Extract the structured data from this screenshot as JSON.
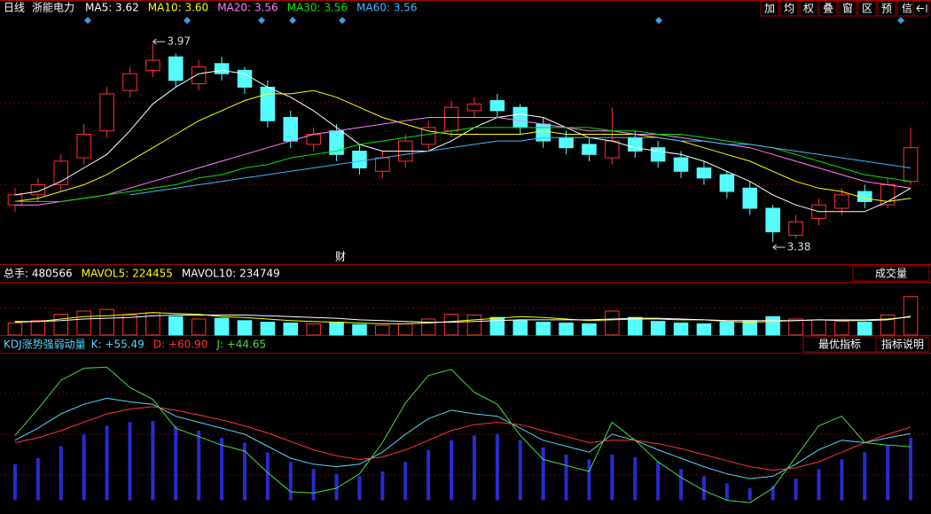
{
  "header": {
    "period": "日线",
    "stock": "浙能电力"
  },
  "toolbar": [
    "加",
    "均",
    "权",
    "叠",
    "窗",
    "区",
    "预",
    "信息"
  ],
  "panel_buttons": {
    "volume": "成交量",
    "best": "最优指标",
    "help": "指标说明"
  },
  "chart_data": [
    {
      "type": "candlestick",
      "ylim": [
        3.33,
        4.02
      ],
      "up_color": "#ff3232",
      "down_color": "#54fcfc",
      "annotations": [
        "财"
      ],
      "open": [
        3.49,
        3.52,
        3.55,
        3.63,
        3.71,
        3.83,
        3.89,
        3.93,
        3.85,
        3.91,
        3.89,
        3.84,
        3.75,
        3.67,
        3.71,
        3.65,
        3.59,
        3.62,
        3.67,
        3.71,
        3.77,
        3.8,
        3.78,
        3.73,
        3.69,
        3.67,
        3.63,
        3.69,
        3.66,
        3.63,
        3.6,
        3.58,
        3.54,
        3.48,
        3.4,
        3.45,
        3.48,
        3.53,
        3.49,
        3.56
      ],
      "high": [
        3.54,
        3.57,
        3.64,
        3.73,
        3.84,
        3.9,
        3.97,
        3.94,
        3.92,
        3.93,
        3.9,
        3.86,
        3.77,
        3.72,
        3.73,
        3.67,
        3.65,
        3.7,
        3.74,
        3.8,
        3.81,
        3.82,
        3.79,
        3.75,
        3.71,
        3.69,
        3.78,
        3.71,
        3.68,
        3.65,
        3.62,
        3.59,
        3.56,
        3.49,
        3.46,
        3.51,
        3.54,
        3.55,
        3.57,
        3.72
      ],
      "low": [
        3.47,
        3.5,
        3.53,
        3.61,
        3.69,
        3.81,
        3.87,
        3.84,
        3.83,
        3.86,
        3.82,
        3.72,
        3.66,
        3.65,
        3.62,
        3.58,
        3.57,
        3.6,
        3.65,
        3.69,
        3.75,
        3.75,
        3.7,
        3.66,
        3.64,
        3.62,
        3.61,
        3.63,
        3.6,
        3.57,
        3.55,
        3.51,
        3.46,
        3.38,
        3.39,
        3.43,
        3.46,
        3.48,
        3.48,
        3.55
      ],
      "close": [
        3.52,
        3.55,
        3.62,
        3.7,
        3.82,
        3.88,
        3.92,
        3.86,
        3.9,
        3.88,
        3.84,
        3.74,
        3.68,
        3.7,
        3.64,
        3.6,
        3.63,
        3.68,
        3.72,
        3.78,
        3.79,
        3.77,
        3.72,
        3.68,
        3.66,
        3.64,
        3.68,
        3.65,
        3.62,
        3.59,
        3.57,
        3.53,
        3.48,
        3.41,
        3.44,
        3.49,
        3.52,
        3.5,
        3.55,
        3.66
      ],
      "series": [
        {
          "name": "MA5: 3.62",
          "color": "#ffffff",
          "values": [
            3.52,
            3.53,
            3.56,
            3.6,
            3.64,
            3.71,
            3.79,
            3.84,
            3.88,
            3.89,
            3.88,
            3.84,
            3.81,
            3.77,
            3.72,
            3.67,
            3.65,
            3.65,
            3.65,
            3.68,
            3.72,
            3.75,
            3.76,
            3.75,
            3.72,
            3.69,
            3.68,
            3.66,
            3.65,
            3.64,
            3.62,
            3.59,
            3.56,
            3.52,
            3.49,
            3.47,
            3.47,
            3.47,
            3.5,
            3.54
          ]
        },
        {
          "name": "MA10: 3.60",
          "color": "#ffff00",
          "values": [
            3.5,
            3.51,
            3.53,
            3.55,
            3.58,
            3.62,
            3.66,
            3.7,
            3.74,
            3.77,
            3.8,
            3.82,
            3.82,
            3.83,
            3.81,
            3.78,
            3.75,
            3.73,
            3.71,
            3.7,
            3.7,
            3.7,
            3.7,
            3.71,
            3.7,
            3.7,
            3.7,
            3.7,
            3.69,
            3.68,
            3.66,
            3.64,
            3.62,
            3.59,
            3.56,
            3.54,
            3.53,
            3.51,
            3.5,
            3.51
          ]
        },
        {
          "name": "MA20: 3.56",
          "color": "#ff80ff",
          "values": [
            3.49,
            3.49,
            3.5,
            3.51,
            3.52,
            3.54,
            3.56,
            3.58,
            3.6,
            3.62,
            3.64,
            3.66,
            3.68,
            3.7,
            3.71,
            3.72,
            3.73,
            3.74,
            3.75,
            3.75,
            3.75,
            3.75,
            3.74,
            3.73,
            3.72,
            3.71,
            3.71,
            3.7,
            3.7,
            3.69,
            3.68,
            3.67,
            3.66,
            3.64,
            3.62,
            3.6,
            3.58,
            3.56,
            3.55,
            3.54
          ]
        },
        {
          "name": "MA30: 3.56",
          "color": "#00e600",
          "values": [
            3.5,
            3.5,
            3.5,
            3.51,
            3.52,
            3.53,
            3.54,
            3.55,
            3.57,
            3.58,
            3.6,
            3.61,
            3.63,
            3.64,
            3.65,
            3.67,
            3.68,
            3.69,
            3.7,
            3.71,
            3.72,
            3.72,
            3.72,
            3.72,
            3.72,
            3.72,
            3.71,
            3.71,
            3.7,
            3.7,
            3.69,
            3.68,
            3.67,
            3.66,
            3.64,
            3.62,
            3.6,
            3.58,
            3.57,
            3.56
          ]
        },
        {
          "name": "MA60: 3.56",
          "color": "#40b8ff",
          "values": [
            null,
            null,
            null,
            null,
            null,
            3.52,
            3.53,
            3.54,
            3.55,
            3.56,
            3.57,
            3.58,
            3.59,
            3.6,
            3.61,
            3.62,
            3.63,
            3.64,
            3.65,
            3.66,
            3.67,
            3.68,
            3.68,
            3.69,
            3.69,
            3.69,
            3.69,
            3.69,
            3.69,
            3.68,
            3.68,
            3.67,
            3.67,
            3.66,
            3.65,
            3.64,
            3.63,
            3.62,
            3.61,
            3.6
          ]
        }
      ]
    },
    {
      "type": "bar",
      "ylim": [
        0,
        600000
      ],
      "name": "总手: 480566",
      "name_color": "#ffffff",
      "values": [
        150000,
        180000,
        260000,
        300000,
        320000,
        250000,
        280000,
        230000,
        200000,
        210000,
        180000,
        160000,
        150000,
        140000,
        160000,
        130000,
        120000,
        140000,
        200000,
        260000,
        250000,
        220000,
        180000,
        160000,
        150000,
        140000,
        300000,
        220000,
        170000,
        150000,
        140000,
        160000,
        180000,
        230000,
        200000,
        190000,
        170000,
        160000,
        250000,
        480566
      ],
      "series": [
        {
          "name": "MAVOL5: 224455",
          "color": "#ffff00",
          "values": [
            160000,
            170000,
            200000,
            230000,
            240000,
            260000,
            280000,
            270000,
            260000,
            230000,
            220000,
            200000,
            180000,
            170000,
            160000,
            150000,
            140000,
            140000,
            150000,
            170000,
            190000,
            210000,
            230000,
            220000,
            200000,
            180000,
            190000,
            200000,
            200000,
            190000,
            190000,
            170000,
            160000,
            170000,
            180000,
            190000,
            190000,
            190000,
            200000,
            224455
          ]
        },
        {
          "name": "MAVOL10: 234749",
          "color": "#ffffff",
          "values": [
            170000,
            170000,
            180000,
            200000,
            210000,
            220000,
            240000,
            250000,
            250000,
            250000,
            250000,
            240000,
            230000,
            220000,
            210000,
            190000,
            180000,
            170000,
            160000,
            160000,
            170000,
            180000,
            190000,
            190000,
            190000,
            190000,
            200000,
            210000,
            210000,
            200000,
            190000,
            180000,
            180000,
            180000,
            180000,
            190000,
            180000,
            180000,
            190000,
            234749
          ]
        }
      ]
    },
    {
      "type": "line",
      "title": "KDJ涨势强弱动量",
      "ylim": [
        -10,
        120
      ],
      "bar_color": "#2a2ad0",
      "bars": [
        30,
        35,
        45,
        55,
        62,
        65,
        66,
        62,
        58,
        52,
        48,
        40,
        32,
        26,
        22,
        20,
        24,
        32,
        42,
        50,
        54,
        55,
        50,
        44,
        38,
        34,
        38,
        36,
        32,
        26,
        20,
        14,
        10,
        12,
        18,
        26,
        34,
        40,
        46,
        52
      ],
      "series": [
        {
          "name": "K: +55.49",
          "color": "#54d8fc",
          "values": [
            50,
            60,
            72,
            80,
            85,
            82,
            80,
            70,
            65,
            60,
            55,
            45,
            35,
            30,
            28,
            30,
            40,
            55,
            68,
            75,
            72,
            70,
            60,
            50,
            45,
            40,
            55,
            50,
            42,
            35,
            28,
            22,
            18,
            20,
            30,
            42,
            50,
            48,
            52,
            55.49
          ]
        },
        {
          "name": "D: +60.90",
          "color": "#ff3232",
          "values": [
            48,
            52,
            58,
            65,
            72,
            76,
            78,
            75,
            71,
            67,
            62,
            56,
            49,
            42,
            37,
            34,
            36,
            42,
            50,
            58,
            63,
            65,
            63,
            58,
            53,
            48,
            50,
            50,
            47,
            43,
            38,
            33,
            28,
            25,
            27,
            32,
            40,
            48,
            55,
            60.9
          ]
        },
        {
          "name": "J: +44.65",
          "color": "#40e040",
          "values": [
            54,
            76,
            100,
            110,
            111,
            94,
            84,
            60,
            53,
            46,
            41,
            23,
            7,
            6,
            10,
            22,
            48,
            81,
            104,
            109,
            90,
            80,
            54,
            34,
            29,
            24,
            65,
            50,
            32,
            19,
            8,
            0,
            -2,
            10,
            36,
            62,
            70,
            48,
            46,
            44.65
          ]
        }
      ]
    }
  ]
}
